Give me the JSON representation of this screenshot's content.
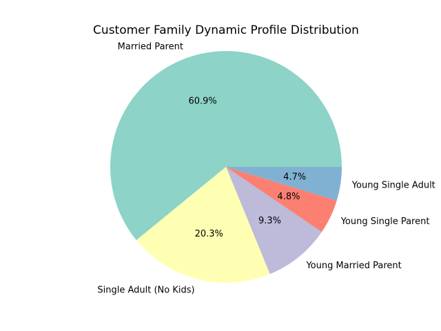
{
  "chart_data": {
    "type": "pie",
    "title": "Customer Family Dynamic Profile Distribution",
    "start_angle_deg": 0,
    "direction": "counterclockwise",
    "slices": [
      {
        "label": "Married Parent",
        "value": 60.9,
        "pct_label": "60.9%",
        "color": "#8dd3c7"
      },
      {
        "label": "Single Adult (No Kids)",
        "value": 20.3,
        "pct_label": "20.3%",
        "color": "#ffffb3"
      },
      {
        "label": "Young Married Parent",
        "value": 9.3,
        "pct_label": "9.3%",
        "color": "#bebada"
      },
      {
        "label": "Young Single Parent",
        "value": 4.8,
        "pct_label": "4.8%",
        "color": "#fb8072"
      },
      {
        "label": "Young Single Adult",
        "value": 4.7,
        "pct_label": "4.7%",
        "color": "#80b1d3"
      }
    ]
  }
}
